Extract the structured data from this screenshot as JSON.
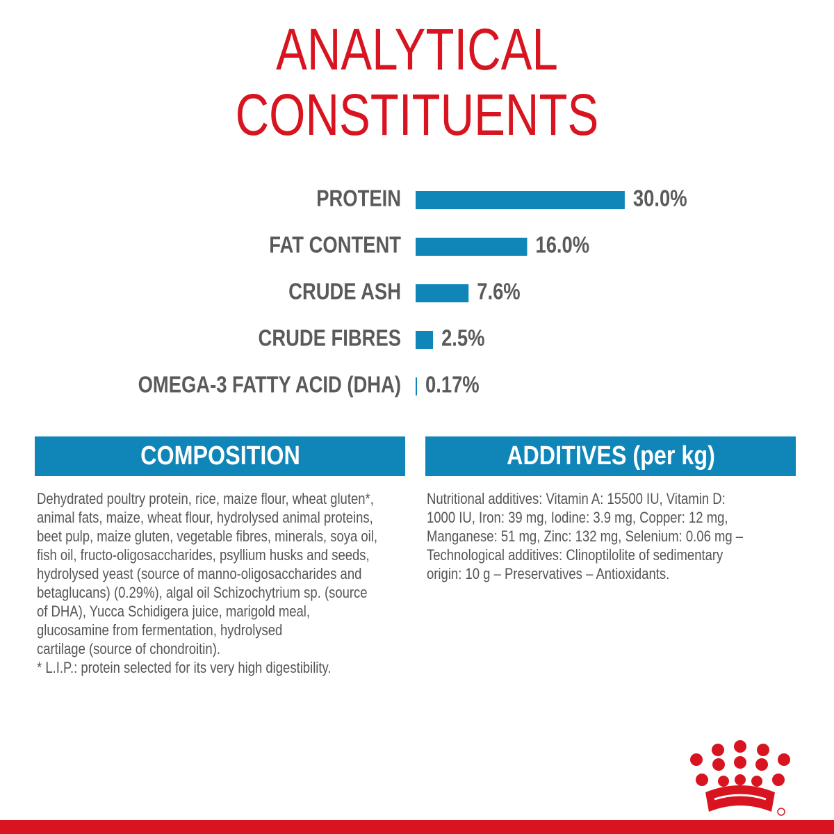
{
  "chart_data": {
    "type": "bar",
    "orientation": "horizontal",
    "title_lines": [
      "ANALYTICAL",
      "CONSTITUENTS"
    ],
    "categories": [
      "PROTEIN",
      "FAT CONTENT",
      "CRUDE ASH",
      "CRUDE FIBRES",
      "OMEGA-3 FATTY ACID (DHA)"
    ],
    "values": [
      30.0,
      16.0,
      7.6,
      2.5,
      0.17
    ],
    "value_labels": [
      "30.0%",
      "16.0%",
      "7.6%",
      "2.5%",
      "0.17%"
    ],
    "color": "#0f85b8"
  },
  "composition": {
    "heading": "COMPOSITION",
    "lines": [
      "Dehydrated poultry protein, rice, maize flour, wheat gluten*,",
      "animal fats, maize, wheat flour, hydrolysed animal proteins,",
      "beet pulp, maize gluten, vegetable fibres, minerals, soya oil,",
      "fish oil, fructo-oligosaccharides, psyllium husks and seeds,",
      "hydrolysed yeast (source of manno-oligosaccharides and",
      "betaglucans) (0.29%), algal oil Schizochytrium sp. (source",
      "of DHA), Yucca Schidigera juice, marigold meal,",
      "glucosamine from fermentation, hydrolysed",
      "cartilage (source of chondroitin).",
      "* L.I.P.: protein selected for its very high digestibility."
    ]
  },
  "additives": {
    "heading": "ADDITIVES (per kg)",
    "lines": [
      "Nutritional additives: Vitamin A: 15500 IU, Vitamin D:",
      "1000 IU, Iron: 39 mg, Iodine: 3.9 mg, Copper: 12 mg,",
      "Manganese: 51 mg, Zinc: 132 mg, Selenium: 0.06 mg –",
      "Technological additives: Clinoptilolite of sedimentary",
      "origin: 10 g – Preservatives – Antioxidants."
    ]
  }
}
